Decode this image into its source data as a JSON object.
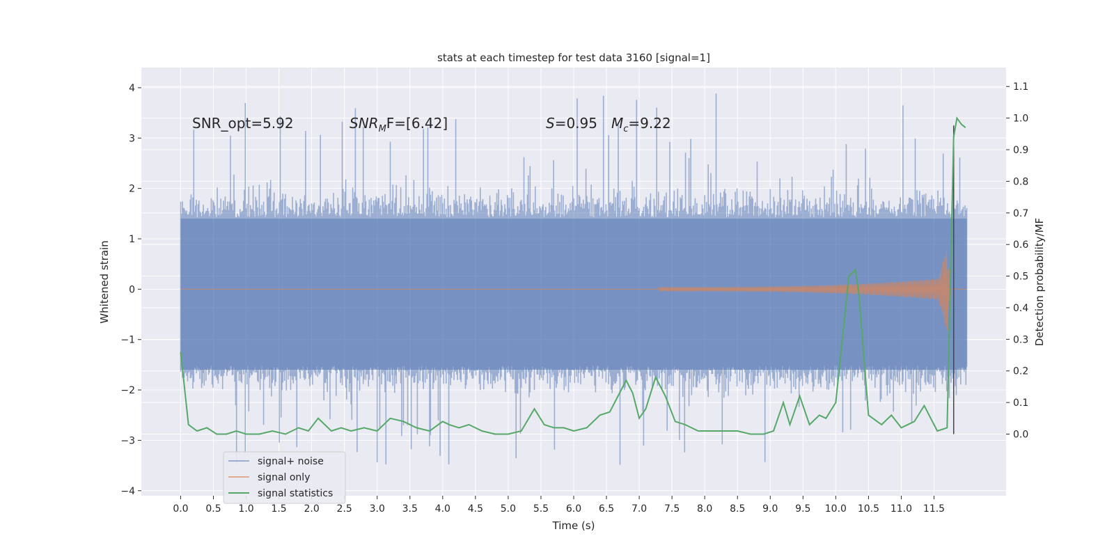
{
  "chart_data": {
    "type": "line",
    "title": "stats at each timestep for test data 3160 [signal=1]",
    "xlabel": "Time (s)",
    "ylabel_left": "Whitened strain",
    "ylabel_right": "Detection probability/MF",
    "xlim": [
      -0.6,
      12.6
    ],
    "ylim_left": [
      -4.1,
      4.4
    ],
    "ylim_right": [
      -0.195,
      1.16
    ],
    "x_ticks": [
      "0.0",
      "0.5",
      "1.0",
      "1.5",
      "2.0",
      "2.5",
      "3.0",
      "3.5",
      "4.0",
      "4.5",
      "5.0",
      "5.5",
      "6.0",
      "6.5",
      "7.0",
      "7.5",
      "8.0",
      "8.5",
      "9.0",
      "9.5",
      "10.0",
      "10.5",
      "11.0",
      "11.5"
    ],
    "y_ticks_left": [
      "−4",
      "−3",
      "−2",
      "−1",
      "0",
      "1",
      "2",
      "3",
      "4"
    ],
    "y_ticks_right": [
      "0.0",
      "0.1",
      "0.2",
      "0.3",
      "0.4",
      "0.5",
      "0.6",
      "0.7",
      "0.8",
      "0.9",
      "1.0",
      "1.1"
    ],
    "annotations": {
      "snr_opt": "SNR_opt=5.92",
      "snr_mf_label": "SNR",
      "snr_mf_sub": "M",
      "snr_mf_rest": "F=[6.42]",
      "s_label": "S",
      "s_value": "=0.95",
      "mc_label": "M",
      "mc_sub": "c",
      "mc_value": "=9.22"
    },
    "series": [
      {
        "name": "signal+ noise",
        "color": "#4c72b0",
        "axis": "left",
        "t_range": [
          0.0,
          12.0
        ],
        "envelope_typical": 1.9,
        "peak_max": 4.1,
        "trough_min": -3.7
      },
      {
        "name": "signal only",
        "color": "#dd8452",
        "axis": "left",
        "t_range": [
          0.0,
          12.0
        ],
        "chirp_start": 7.3,
        "peak_time": 11.7,
        "peak_amplitude": 1.0
      },
      {
        "name": "signal statistics",
        "color": "#55a868",
        "axis": "right",
        "x": [
          0.0,
          0.12,
          0.25,
          0.4,
          0.55,
          0.7,
          0.85,
          1.0,
          1.2,
          1.4,
          1.6,
          1.8,
          1.95,
          2.1,
          2.3,
          2.45,
          2.6,
          2.8,
          3.0,
          3.2,
          3.4,
          3.6,
          3.8,
          4.0,
          4.1,
          4.25,
          4.4,
          4.6,
          4.8,
          5.0,
          5.2,
          5.4,
          5.55,
          5.7,
          5.85,
          6.0,
          6.2,
          6.4,
          6.55,
          6.7,
          6.8,
          6.9,
          7.0,
          7.1,
          7.25,
          7.4,
          7.55,
          7.7,
          7.9,
          8.1,
          8.3,
          8.5,
          8.7,
          8.9,
          9.05,
          9.2,
          9.3,
          9.45,
          9.6,
          9.75,
          9.85,
          10.0,
          10.2,
          10.3,
          10.35,
          10.5,
          10.7,
          10.85,
          11.0,
          11.2,
          11.35,
          11.55,
          11.7,
          11.8,
          11.85,
          11.92,
          11.98
        ],
        "values": [
          0.26,
          0.03,
          0.01,
          0.02,
          0.0,
          0.0,
          0.01,
          0.0,
          0.0,
          0.01,
          0.0,
          0.02,
          0.01,
          0.05,
          0.01,
          0.02,
          0.01,
          0.02,
          0.01,
          0.05,
          0.04,
          0.02,
          0.01,
          0.04,
          0.03,
          0.02,
          0.03,
          0.01,
          0.0,
          0.0,
          0.01,
          0.08,
          0.03,
          0.02,
          0.02,
          0.01,
          0.02,
          0.06,
          0.07,
          0.13,
          0.17,
          0.13,
          0.05,
          0.08,
          0.18,
          0.12,
          0.04,
          0.03,
          0.01,
          0.01,
          0.01,
          0.01,
          0.0,
          0.0,
          0.01,
          0.1,
          0.03,
          0.12,
          0.03,
          0.06,
          0.05,
          0.1,
          0.5,
          0.52,
          0.45,
          0.06,
          0.03,
          0.06,
          0.02,
          0.04,
          0.09,
          0.01,
          0.02,
          0.94,
          1.0,
          0.98,
          0.97
        ]
      }
    ],
    "vertical_line_x": 11.8,
    "legend": {
      "position": "lower-left",
      "entries": [
        "signal+ noise",
        "signal only",
        "signal statistics"
      ]
    }
  },
  "colors": {
    "axes_bg": "#eaeaf2",
    "grid": "#ffffff",
    "noise": "#4c72b0",
    "signal": "#dd8452",
    "stats": "#55a868",
    "vline": "#444444"
  }
}
